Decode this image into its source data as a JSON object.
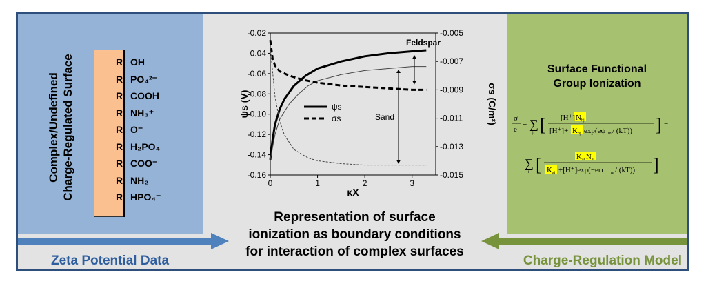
{
  "left_panel": {
    "title_line1": "Complex/Undefined",
    "title_line2": "Charge-Regulated Surface",
    "groups": [
      {
        "r": "R",
        "g": "OH"
      },
      {
        "r": "R",
        "g": "PO₄²⁻"
      },
      {
        "r": "R",
        "g": "COOH"
      },
      {
        "r": "R",
        "g": "NH₃⁺"
      },
      {
        "r": "R",
        "g": "O⁻"
      },
      {
        "r": "R",
        "g": "H₂PO₄"
      },
      {
        "r": "R",
        "g": "COO⁻"
      },
      {
        "r": "R",
        "g": "NH₂"
      },
      {
        "r": "R",
        "g": "HPO₄⁻"
      }
    ]
  },
  "chart_data": {
    "type": "line",
    "xlabel": "κX",
    "ylabel_left": "ψs (V)",
    "ylabel_right": "σs (C/m²)",
    "xlim": [
      0,
      3.5
    ],
    "ylim_left": [
      -0.16,
      -0.02
    ],
    "ylim_right": [
      -0.015,
      -0.005
    ],
    "x_ticks": [
      "0",
      "1",
      "2",
      "3"
    ],
    "y_ticks_left": [
      "-0.02",
      "-0.04",
      "-0.06",
      "-0.08",
      "-0.10",
      "-0.12",
      "-0.14",
      "-0.16"
    ],
    "y_ticks_right": [
      "-0.005",
      "-0.007",
      "-0.009",
      "-0.011",
      "-0.013",
      "-0.015"
    ],
    "legend": {
      "psi": "ψs",
      "sigma": "σs"
    },
    "annotations": {
      "feldspar": "Feldspar",
      "sand": "Sand"
    },
    "series": [
      {
        "name": "ψs",
        "surface": "Feldspar",
        "style": "thick-solid",
        "axis": "left",
        "x": [
          0,
          0.05,
          0.1,
          0.2,
          0.3,
          0.5,
          0.75,
          1.0,
          1.5,
          2.0,
          2.5,
          3.0,
          3.3
        ],
        "y": [
          -0.145,
          -0.125,
          -0.11,
          -0.095,
          -0.085,
          -0.072,
          -0.062,
          -0.055,
          -0.048,
          -0.043,
          -0.04,
          -0.038,
          -0.037
        ]
      },
      {
        "name": "ψs",
        "surface": "Sand",
        "style": "thin-solid",
        "axis": "left",
        "x": [
          0,
          0.1,
          0.2,
          0.4,
          0.6,
          0.8,
          1.0,
          1.5,
          2.0,
          2.5,
          3.0,
          3.3
        ],
        "y": [
          -0.145,
          -0.12,
          -0.105,
          -0.09,
          -0.08,
          -0.072,
          -0.067,
          -0.061,
          -0.057,
          -0.055,
          -0.053,
          -0.053
        ]
      },
      {
        "name": "σs",
        "surface": "Feldspar",
        "style": "thick-dashed",
        "axis": "right",
        "x": [
          0,
          0.05,
          0.1,
          0.2,
          0.4,
          0.7,
          1.0,
          1.5,
          2.0,
          2.5,
          3.0,
          3.3
        ],
        "y": [
          -0.0055,
          -0.0068,
          -0.0073,
          -0.0077,
          -0.008,
          -0.0083,
          -0.0085,
          -0.0087,
          -0.0088,
          -0.0089,
          -0.009,
          -0.009
        ]
      },
      {
        "name": "σs",
        "surface": "Sand",
        "style": "thin-dashed",
        "axis": "right",
        "x": [
          0,
          0.1,
          0.2,
          0.3,
          0.5,
          0.8,
          1.0,
          1.5,
          2.0,
          2.5,
          3.0,
          3.3
        ],
        "y": [
          -0.006,
          -0.0095,
          -0.0112,
          -0.0122,
          -0.0132,
          -0.0138,
          -0.014,
          -0.0142,
          -0.0143,
          -0.0143,
          -0.0143,
          -0.0143
        ]
      }
    ]
  },
  "center_caption": {
    "line1": "Representation of surface",
    "line2": "ionization as boundary conditions",
    "line3": "for interaction of complex surfaces"
  },
  "right_panel": {
    "title_line1": "Surface Functional",
    "title_line2": "Group Ionization"
  },
  "bottom": {
    "left_label": "Zeta Potential Data",
    "right_label": "Charge-Regulation Model"
  },
  "colors": {
    "left_panel": "#95b3d7",
    "right_panel": "#a6c170",
    "center": "#e3e3e3",
    "surface_block": "#fac090",
    "border": "#2e4f7c",
    "arrow_blue": "#4f81bd",
    "arrow_green": "#77933c",
    "highlight": "#ffff00"
  }
}
